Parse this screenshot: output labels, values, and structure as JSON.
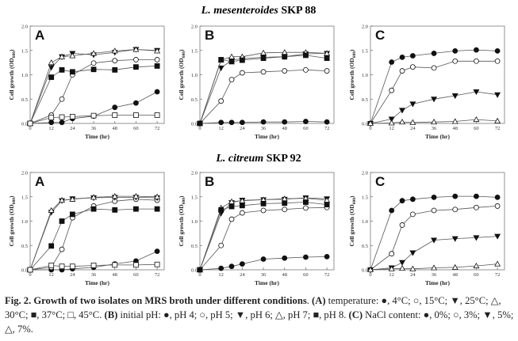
{
  "figure_titles": [
    {
      "species": "L. mesenteroides",
      "strain": " SKP 88"
    },
    {
      "species": "L. citreum",
      "strain": " SKP 92"
    }
  ],
  "caption": [
    {
      "text": "Fig. 2. Growth of two isolates on MRS broth under different conditions",
      "bold": true
    },
    {
      "text": ". ",
      "bold": false
    },
    {
      "text": "(A)",
      "bold": true
    },
    {
      "text": " temperature: ●, 4°C; ○, 15°C; ▼, 25°C; △, 30°C; ■, 37°C; □, 45°C. ",
      "bold": false
    },
    {
      "text": "(B)",
      "bold": true
    },
    {
      "text": " initial pH: ●, pH 4; ○, pH 5; ▼, pH 6; △, pH 7; ■, pH 8. ",
      "bold": false
    },
    {
      "text": "(C)",
      "bold": true
    },
    {
      "text": " NaCl content: ●, 0%; ○, 3%; ▼, 5%; △, 7%.",
      "bold": false
    }
  ],
  "chart_data": [
    {
      "type": "line",
      "panel": "A",
      "group": 0,
      "xlabel": "Time (hr)",
      "ylabel": "Cell growth (OD600)",
      "xlim": [
        0,
        76
      ],
      "ylim": [
        0,
        2.0
      ],
      "xticks": [
        0,
        12,
        24,
        36,
        48,
        60,
        72
      ],
      "yticks": [
        "0.0",
        "0.5",
        "1.0",
        "1.5",
        "2.0"
      ],
      "grid": false,
      "x": [
        0,
        12,
        18,
        24,
        36,
        48,
        60,
        72
      ],
      "series": [
        {
          "name": "4°C",
          "marker": "filled-circle",
          "values": [
            0,
            0.02,
            0.02,
            0.1,
            0.15,
            0.33,
            0.42,
            0.65
          ]
        },
        {
          "name": "15°C",
          "marker": "open-circle",
          "values": [
            0,
            0.17,
            0.5,
            1.0,
            1.24,
            1.29,
            1.31,
            1.31
          ]
        },
        {
          "name": "25°C",
          "marker": "filled-triangle-down",
          "values": [
            0,
            1.15,
            1.37,
            1.44,
            1.41,
            1.46,
            1.52,
            1.5
          ]
        },
        {
          "name": "30°C",
          "marker": "open-triangle-up",
          "values": [
            0,
            1.25,
            1.37,
            1.39,
            1.44,
            1.49,
            1.52,
            1.49
          ]
        },
        {
          "name": "37°C",
          "marker": "filled-square",
          "values": [
            0,
            0.95,
            1.1,
            1.06,
            1.11,
            1.1,
            1.16,
            1.18
          ]
        },
        {
          "name": "45°C",
          "marker": "open-square",
          "values": [
            0,
            0.12,
            0.13,
            0.14,
            0.16,
            0.17,
            0.17,
            0.17
          ]
        }
      ]
    },
    {
      "type": "line",
      "panel": "B",
      "group": 0,
      "xlabel": "Time (hr)",
      "ylabel": "Cell growth (OD600)",
      "xlim": [
        0,
        76
      ],
      "ylim": [
        0,
        2.0
      ],
      "xticks": [
        0,
        12,
        24,
        36,
        48,
        60,
        72
      ],
      "yticks": [
        "0.0",
        "0.5",
        "1.0",
        "1.5",
        "2.0"
      ],
      "grid": false,
      "x": [
        0,
        12,
        18,
        24,
        36,
        48,
        60,
        72
      ],
      "series": [
        {
          "name": "pH 4",
          "marker": "filled-circle",
          "values": [
            0,
            0.02,
            0.02,
            0.02,
            0.03,
            0.03,
            0.04,
            0.03
          ]
        },
        {
          "name": "pH 5",
          "marker": "open-circle",
          "values": [
            0,
            0.46,
            0.9,
            1.04,
            1.06,
            1.08,
            1.1,
            1.08
          ]
        },
        {
          "name": "pH 6",
          "marker": "filled-triangle-down",
          "values": [
            0,
            1.14,
            1.3,
            1.33,
            1.36,
            1.37,
            1.43,
            1.44
          ]
        },
        {
          "name": "pH 7",
          "marker": "open-triangle-up",
          "values": [
            0,
            1.3,
            1.37,
            1.37,
            1.45,
            1.46,
            1.46,
            1.44
          ]
        },
        {
          "name": "pH 8",
          "marker": "filled-square",
          "values": [
            0,
            1.31,
            1.27,
            1.3,
            1.34,
            1.37,
            1.4,
            1.34
          ]
        }
      ]
    },
    {
      "type": "line",
      "panel": "C",
      "group": 0,
      "xlabel": "Time (hr)",
      "ylabel": "Cell growth (OD600)",
      "xlim": [
        0,
        76
      ],
      "ylim": [
        0,
        2.0
      ],
      "xticks": [
        0,
        12,
        24,
        36,
        48,
        60,
        72
      ],
      "yticks": [
        "0.0",
        "0.5",
        "1.0",
        "1.5",
        "2.0"
      ],
      "grid": false,
      "x": [
        0,
        12,
        18,
        24,
        36,
        48,
        60,
        72
      ],
      "series": [
        {
          "name": "0%",
          "marker": "filled-circle",
          "values": [
            0,
            1.26,
            1.36,
            1.39,
            1.44,
            1.49,
            1.51,
            1.49
          ]
        },
        {
          "name": "3%",
          "marker": "open-circle",
          "values": [
            0,
            0.68,
            1.08,
            1.16,
            1.14,
            1.28,
            1.28,
            1.28
          ]
        },
        {
          "name": "5%",
          "marker": "filled-triangle-down",
          "values": [
            0,
            0.09,
            0.27,
            0.4,
            0.5,
            0.57,
            0.65,
            0.59
          ]
        },
        {
          "name": "7%",
          "marker": "open-triangle-up",
          "values": [
            0,
            0.01,
            0.03,
            0.02,
            0.03,
            0.04,
            0.08,
            0.05
          ]
        }
      ]
    },
    {
      "type": "line",
      "panel": "A",
      "group": 1,
      "xlabel": "Time (hr)",
      "ylabel": "Cell growth (OD600)",
      "xlim": [
        0,
        76
      ],
      "ylim": [
        0,
        2.0
      ],
      "xticks": [
        0,
        12,
        24,
        36,
        48,
        60,
        72
      ],
      "yticks": [
        "0.0",
        "0.5",
        "1.0",
        "1.5",
        "2.0"
      ],
      "grid": false,
      "x": [
        0,
        12,
        18,
        24,
        36,
        48,
        60,
        72
      ],
      "series": [
        {
          "name": "4°C",
          "marker": "filled-circle",
          "values": [
            0,
            0,
            0,
            0.02,
            0.05,
            0.12,
            0.18,
            0.38
          ]
        },
        {
          "name": "15°C",
          "marker": "open-circle",
          "values": [
            0,
            0.05,
            0.42,
            1.07,
            1.31,
            1.41,
            1.45,
            1.43
          ]
        },
        {
          "name": "25°C",
          "marker": "filled-triangle-down",
          "values": [
            0,
            1.18,
            1.42,
            1.46,
            1.48,
            1.49,
            1.49,
            1.48
          ]
        },
        {
          "name": "30°C",
          "marker": "open-triangle-up",
          "values": [
            0,
            1.22,
            1.43,
            1.45,
            1.49,
            1.51,
            1.51,
            1.5
          ]
        },
        {
          "name": "37°C",
          "marker": "filled-square",
          "values": [
            0,
            0.49,
            1.0,
            1.14,
            1.25,
            1.23,
            1.25,
            1.25
          ]
        },
        {
          "name": "45°C",
          "marker": "open-square",
          "values": [
            0,
            0.09,
            0.07,
            0.07,
            0.09,
            0.1,
            0.1,
            0.11
          ]
        }
      ]
    },
    {
      "type": "line",
      "panel": "B",
      "group": 1,
      "xlabel": "Time (hr)",
      "ylabel": "Cell growth (OD600)",
      "xlim": [
        0,
        76
      ],
      "ylim": [
        0,
        2.0
      ],
      "xticks": [
        0,
        12,
        24,
        36,
        48,
        60,
        72
      ],
      "yticks": [
        "0.0",
        "0.5",
        "1.0",
        "1.5",
        "2.0"
      ],
      "grid": false,
      "x": [
        0,
        12,
        18,
        24,
        36,
        48,
        60,
        72
      ],
      "series": [
        {
          "name": "pH 4",
          "marker": "filled-circle",
          "values": [
            0,
            0.03,
            0.07,
            0.12,
            0.22,
            0.24,
            0.26,
            0.27
          ]
        },
        {
          "name": "pH 5",
          "marker": "open-circle",
          "values": [
            0,
            0.5,
            1.04,
            1.17,
            1.22,
            1.24,
            1.27,
            1.28
          ]
        },
        {
          "name": "pH 6",
          "marker": "filled-triangle-down",
          "values": [
            0,
            1.16,
            1.38,
            1.43,
            1.44,
            1.45,
            1.48,
            1.46
          ]
        },
        {
          "name": "pH 7",
          "marker": "open-triangle-up",
          "values": [
            0,
            1.27,
            1.4,
            1.42,
            1.44,
            1.46,
            1.47,
            1.43
          ]
        },
        {
          "name": "pH 8",
          "marker": "filled-square",
          "values": [
            0,
            1.23,
            1.3,
            1.32,
            1.36,
            1.37,
            1.39,
            1.34
          ]
        }
      ]
    },
    {
      "type": "line",
      "panel": "C",
      "group": 1,
      "xlabel": "Time (hr)",
      "ylabel": "Cell growth (OD600)",
      "xlim": [
        0,
        76
      ],
      "ylim": [
        0,
        2.0
      ],
      "xticks": [
        0,
        12,
        24,
        36,
        48,
        60,
        72
      ],
      "yticks": [
        "0.0",
        "0.5",
        "1.0",
        "1.5",
        "2.0"
      ],
      "grid": false,
      "x": [
        0,
        12,
        18,
        24,
        36,
        48,
        60,
        72
      ],
      "series": [
        {
          "name": "0%",
          "marker": "filled-circle",
          "values": [
            0,
            1.22,
            1.42,
            1.45,
            1.49,
            1.51,
            1.51,
            1.49
          ]
        },
        {
          "name": "3%",
          "marker": "open-circle",
          "values": [
            0,
            0.33,
            0.92,
            1.14,
            1.22,
            1.24,
            1.28,
            1.31
          ]
        },
        {
          "name": "5%",
          "marker": "filled-triangle-down",
          "values": [
            0,
            0.04,
            0.15,
            0.35,
            0.61,
            0.64,
            0.66,
            0.69
          ]
        },
        {
          "name": "7%",
          "marker": "open-triangle-up",
          "values": [
            0,
            0.02,
            0.03,
            0.02,
            0.04,
            0.05,
            0.08,
            0.12
          ]
        }
      ]
    }
  ]
}
